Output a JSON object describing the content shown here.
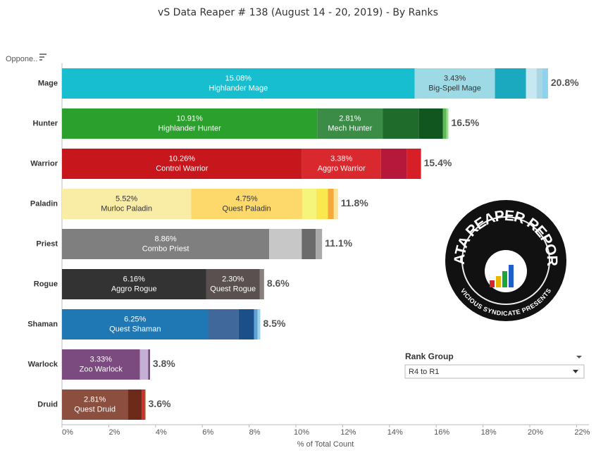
{
  "chart_data": {
    "type": "stacked-bar",
    "title": "vS Data Reaper #  138 (August 14 - 20, 2019) - By Ranks",
    "y_label": "Oppone..",
    "x_label": "% of Total Count",
    "xlim": [
      0,
      22
    ],
    "xticks": [
      {
        "value": 0,
        "label": "0%"
      },
      {
        "value": 2,
        "label": "2%"
      },
      {
        "value": 4,
        "label": "4%"
      },
      {
        "value": 6,
        "label": "6%"
      },
      {
        "value": 8,
        "label": "8%"
      },
      {
        "value": 10,
        "label": "10%"
      },
      {
        "value": 12,
        "label": "12%"
      },
      {
        "value": 14,
        "label": "14%"
      },
      {
        "value": 16,
        "label": "16%"
      },
      {
        "value": 18,
        "label": "18%"
      },
      {
        "value": 20,
        "label": "20%"
      },
      {
        "value": 22,
        "label": "22%"
      }
    ],
    "bars": [
      {
        "category": "Mage",
        "total_label": "20.8%",
        "segments": [
          {
            "value": 15.08,
            "value_label": "15.08%",
            "name": "Highlander Mage",
            "color": "#17becf"
          },
          {
            "value": 3.43,
            "value_label": "3.43%",
            "name": "Big-Spell Mage",
            "color": "#9edae5"
          },
          {
            "value": 1.33,
            "color": "#1ba9c0"
          },
          {
            "value": 0.45,
            "color": "#c6e9f1"
          },
          {
            "value": 0.25,
            "color": "#a9d6e2"
          },
          {
            "value": 0.24,
            "color": "#8fd2ee"
          }
        ]
      },
      {
        "category": "Hunter",
        "total_label": "16.5%",
        "segments": [
          {
            "value": 10.91,
            "value_label": "10.91%",
            "name": "Highlander Hunter",
            "color": "#2ca02c"
          },
          {
            "value": 2.81,
            "value_label": "2.81%",
            "name": "Mech Hunter",
            "color": "#3b8c47"
          },
          {
            "value": 1.54,
            "color": "#1e6b2c"
          },
          {
            "value": 1.02,
            "color": "#12561f"
          },
          {
            "value": 0.15,
            "color": "#5fb95a"
          },
          {
            "value": 0.09,
            "color": "#98df8a"
          }
        ]
      },
      {
        "category": "Warrior",
        "total_label": "15.4%",
        "segments": [
          {
            "value": 10.26,
            "value_label": "10.26%",
            "name": "Control Warrior",
            "color": "#c8161d"
          },
          {
            "value": 3.38,
            "value_label": "3.38%",
            "name": "Aggro Warrior",
            "color": "#d9292e"
          },
          {
            "value": 1.11,
            "color": "#b5183a"
          },
          {
            "value": 0.6,
            "color": "#d61f26"
          }
        ]
      },
      {
        "category": "Paladin",
        "total_label": "11.8%",
        "segments": [
          {
            "value": 5.52,
            "value_label": "5.52%",
            "name": "Murloc Paladin",
            "color": "#f9eca4"
          },
          {
            "value": 4.75,
            "value_label": "4.75%",
            "name": "Quest Paladin",
            "color": "#fcd96a"
          },
          {
            "value": 0.6,
            "color": "#f4f57a"
          },
          {
            "value": 0.5,
            "color": "#f9e84e"
          },
          {
            "value": 0.25,
            "color": "#f4a93a"
          },
          {
            "value": 0.18,
            "color": "#fbe39a"
          }
        ]
      },
      {
        "category": "Priest",
        "total_label": "11.1%",
        "segments": [
          {
            "value": 8.86,
            "value_label": "8.86%",
            "name": "Combo Priest",
            "color": "#7f7f7f"
          },
          {
            "value": 1.39,
            "color": "#c7c7c7"
          },
          {
            "value": 0.6,
            "color": "#6b6b6b"
          },
          {
            "value": 0.27,
            "color": "#a9a9a9"
          }
        ]
      },
      {
        "category": "Rogue",
        "total_label": "8.6%",
        "segments": [
          {
            "value": 6.16,
            "value_label": "6.16%",
            "name": "Aggro Rogue",
            "color": "#333333"
          },
          {
            "value": 2.3,
            "value_label": "2.30%",
            "name": "Quest Rogue",
            "color": "#5a5050"
          },
          {
            "value": 0.18,
            "color": "#8a8080"
          }
        ]
      },
      {
        "category": "Shaman",
        "total_label": "8.5%",
        "segments": [
          {
            "value": 6.25,
            "value_label": "6.25%",
            "name": "Quest Shaman",
            "color": "#1f77b4"
          },
          {
            "value": 1.3,
            "color": "#40689b"
          },
          {
            "value": 0.66,
            "color": "#1a4f8a"
          },
          {
            "value": 0.15,
            "color": "#5ea3d4"
          },
          {
            "value": 0.12,
            "color": "#9fd3ec"
          }
        ]
      },
      {
        "category": "Warlock",
        "total_label": "3.8%",
        "segments": [
          {
            "value": 3.33,
            "value_label": "3.33%",
            "name": "Zoo Warlock",
            "color": "#7b4a7f"
          },
          {
            "value": 0.36,
            "color": "#c5b0d5"
          },
          {
            "value": 0.07,
            "color": "#6a3d6e"
          }
        ]
      },
      {
        "category": "Druid",
        "total_label": "3.6%",
        "segments": [
          {
            "value": 2.81,
            "value_label": "2.81%",
            "name": "Quest Druid",
            "color": "#8c4f3f"
          },
          {
            "value": 0.6,
            "color": "#6e2a19"
          },
          {
            "value": 0.1,
            "color": "#d62728"
          },
          {
            "value": 0.06,
            "color": "#a0522d"
          }
        ]
      }
    ]
  },
  "filter": {
    "title": "Rank Group",
    "selected": "R4 to R1"
  },
  "logo": {
    "title": "DATA REAPER REPORT",
    "subtitle": "VICIOUS SYNDICATE PRESENTS"
  }
}
